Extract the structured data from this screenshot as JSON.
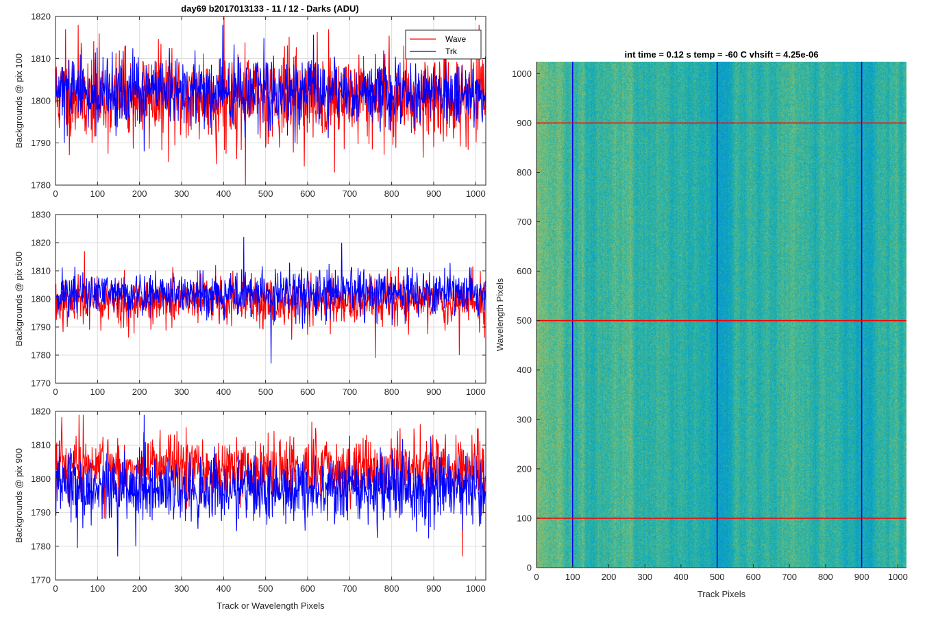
{
  "figure_title": "day69 b2017013133 - 11 / 12 - Darks (ADU)",
  "chart_data": [
    {
      "type": "line",
      "ylabel": "Backgrounds @ pix 100",
      "xlabel": "",
      "xlim": [
        0,
        1024
      ],
      "ylim": [
        1780,
        1820
      ],
      "xticks": [
        0,
        100,
        200,
        300,
        400,
        500,
        600,
        700,
        800,
        900,
        1000
      ],
      "yticks": [
        1780,
        1790,
        1800,
        1810,
        1820
      ],
      "grid": true,
      "legend": "top-right",
      "series": [
        {
          "name": "Wave",
          "color": "#ff0000",
          "mean": 1801,
          "std": 5.5,
          "seed": 11,
          "highlights": [
            [
              23,
              1817
            ],
            [
              53,
              1818
            ],
            [
              400,
              1820
            ],
            [
              451,
              1780
            ],
            [
              382,
              1785
            ],
            [
              663,
              1783
            ]
          ]
        },
        {
          "name": "Trk",
          "color": "#0000ff",
          "mean": 1802,
          "std": 4.0,
          "seed": 29,
          "highlights": [
            [
              397,
              1818
            ],
            [
              20,
              1790
            ],
            [
              210,
              1788
            ]
          ]
        }
      ]
    },
    {
      "type": "line",
      "ylabel": "Backgrounds @ pix 500",
      "xlabel": "",
      "xlim": [
        0,
        1024
      ],
      "ylim": [
        1770,
        1830
      ],
      "xticks": [
        0,
        100,
        200,
        300,
        400,
        500,
        600,
        700,
        800,
        900,
        1000
      ],
      "yticks": [
        1770,
        1780,
        1790,
        1800,
        1810,
        1820,
        1830
      ],
      "grid": true,
      "series": [
        {
          "name": "Wave",
          "color": "#ff0000",
          "mean": 1799,
          "std": 4.5,
          "seed": 53,
          "highlights": [
            [
              68,
              1817
            ],
            [
              380,
              1812
            ],
            [
              760,
              1779
            ],
            [
              960,
              1780
            ]
          ]
        },
        {
          "name": "Trk",
          "color": "#0000ff",
          "mean": 1802,
          "std": 4.0,
          "seed": 71,
          "highlights": [
            [
              447,
              1822
            ],
            [
              512,
              1777
            ],
            [
              680,
              1820
            ]
          ]
        }
      ]
    },
    {
      "type": "line",
      "ylabel": "Backgrounds @ pix 900",
      "xlabel": "Track or Wavelength Pixels",
      "xlim": [
        0,
        1024
      ],
      "ylim": [
        1770,
        1820
      ],
      "xticks": [
        0,
        100,
        200,
        300,
        400,
        500,
        600,
        700,
        800,
        900,
        1000
      ],
      "yticks": [
        1770,
        1780,
        1790,
        1800,
        1810,
        1820
      ],
      "grid": true,
      "series": [
        {
          "name": "Wave",
          "color": "#ff0000",
          "mean": 1803,
          "std": 5.0,
          "seed": 97,
          "highlights": [
            [
              55,
              1819
            ],
            [
              65,
              1819
            ],
            [
              968,
              1777
            ],
            [
              990,
              1813
            ]
          ]
        },
        {
          "name": "Trk",
          "color": "#0000ff",
          "mean": 1797,
          "std": 5.0,
          "seed": 113,
          "highlights": [
            [
              210,
              1819
            ],
            [
              147,
              1777
            ],
            [
              190,
              1780
            ]
          ]
        }
      ]
    },
    {
      "type": "heatmap",
      "title": "int time = 0.12 s    temp = -60 C    vhsift = 4.25e-06",
      "xlabel": "Track Pixels",
      "ylabel": "Wavelength Pixels",
      "xlim": [
        0,
        1024
      ],
      "ylim": [
        0,
        1024
      ],
      "xticks": [
        0,
        100,
        200,
        300,
        400,
        500,
        600,
        700,
        800,
        900,
        1000
      ],
      "yticks": [
        0,
        100,
        200,
        300,
        400,
        500,
        600,
        700,
        800,
        900,
        1000
      ],
      "colormap": "parula",
      "vertical_lines": {
        "color": "#0000ff",
        "x": [
          100,
          500,
          900
        ]
      },
      "horizontal_lines": {
        "color": "#ff0000",
        "y": [
          100,
          500,
          900
        ]
      }
    }
  ]
}
